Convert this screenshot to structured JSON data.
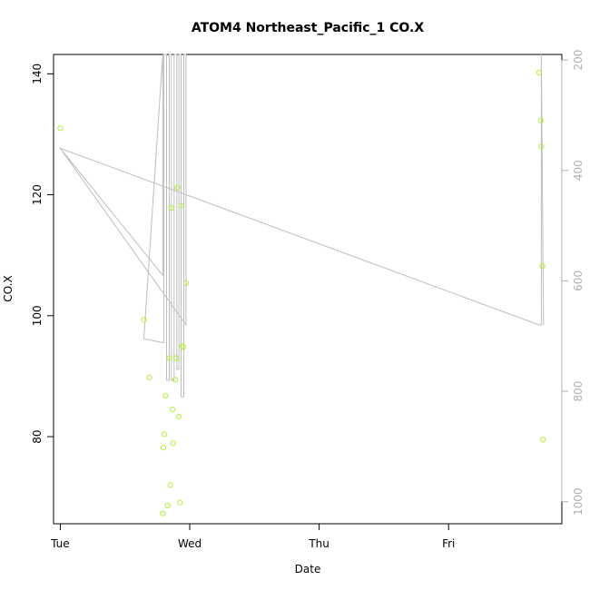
{
  "chart_data": {
    "type": "scatter",
    "title": "ATOM4 Northeast_Pacific_1 CO.X",
    "xlabel": "Date",
    "ylabel": "CO.X",
    "x_ticks": [
      {
        "label": "Tue",
        "value": "Tue 00:00"
      },
      {
        "label": "Wed",
        "value": "Wed 00:00"
      },
      {
        "label": "Thu",
        "value": "Thu 00:00"
      },
      {
        "label": "Fri",
        "value": "Fri 00:00"
      }
    ],
    "xlim_hours": [
      -1.25,
      93
    ],
    "ylim": [
      65.6,
      143.2
    ],
    "y_ticks": [
      80,
      100,
      120,
      140
    ],
    "y2_ticks": [
      200,
      400,
      600,
      800,
      1000
    ],
    "y2lim": [
      1040,
      190
    ],
    "grid": false,
    "legend": "none",
    "colors": {
      "points": "#b3ee3a",
      "line": "#bebebe",
      "axis": "#000000",
      "right_axis": "#b0b0b0"
    },
    "series": [
      {
        "type": "points",
        "axis": "left",
        "x_hours": [
          0,
          15.5,
          16.5,
          19.0,
          19.1,
          19.3,
          19.5,
          19.9,
          20.2,
          20.4,
          20.6,
          20.8,
          20.9,
          21.3,
          21.5,
          21.7,
          22.0,
          22.2,
          22.4,
          22.6,
          22.8,
          23.3,
          88.8,
          89.1,
          89.2,
          89.4,
          89.5
        ],
        "y": [
          131.0,
          99.3,
          89.8,
          67.3,
          78.2,
          80.4,
          86.8,
          68.6,
          93.0,
          72.0,
          117.8,
          84.5,
          78.9,
          89.4,
          93.0,
          121.2,
          83.3,
          69.1,
          118.2,
          95.0,
          94.8,
          105.4,
          140.2,
          132.3,
          128.0,
          108.2,
          79.5
        ]
      },
      {
        "type": "line",
        "axis": "right",
        "x_hours": [
          0,
          19.0,
          19.0,
          15.5,
          19.0,
          19.2,
          19.2,
          19.7,
          19.7,
          20.2,
          20.2,
          20.6,
          20.6,
          21.1,
          21.1,
          21.6,
          21.6,
          22.0,
          22.0,
          22.4,
          22.4,
          22.9,
          22.9,
          23.3,
          23.3,
          0,
          88.8,
          89.2,
          89.2,
          89.6
        ],
        "y": [
          360,
          590,
          190,
          705,
          712,
          712,
          190,
          190,
          780,
          780,
          190,
          190,
          780,
          780,
          190,
          190,
          760,
          760,
          190,
          190,
          810,
          810,
          190,
          190,
          680,
          360,
          680,
          680,
          190,
          680
        ]
      }
    ]
  }
}
